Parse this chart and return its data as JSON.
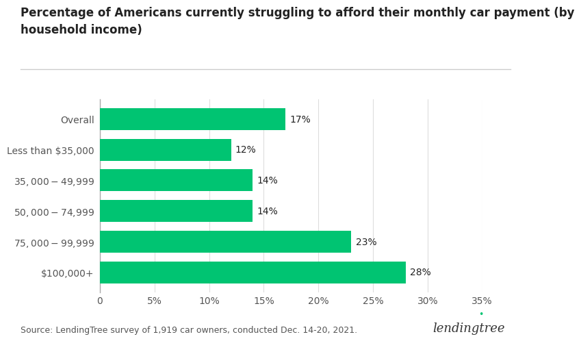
{
  "title_line1": "Percentage of Americans currently struggling to afford their monthly car payment (by",
  "title_line2": "household income)",
  "categories": [
    "Overall",
    "Less than $35,000",
    "$35,000-$49,999",
    "$50,000-$74,999",
    "$75,000-$99,999",
    "$100,000+"
  ],
  "values": [
    17,
    12,
    14,
    14,
    23,
    28
  ],
  "bar_color": "#00C472",
  "label_color": "#222222",
  "background_color": "#ffffff",
  "xlim": [
    0,
    35
  ],
  "xticks": [
    0,
    5,
    10,
    15,
    20,
    25,
    30,
    35
  ],
  "xtick_labels": [
    "0",
    "5%",
    "10%",
    "15%",
    "20%",
    "25%",
    "30%",
    "35%"
  ],
  "title_fontsize": 12,
  "tick_fontsize": 10,
  "label_fontsize": 10,
  "ytick_fontsize": 10,
  "source_text": "Source: LendingTree survey of 1,919 car owners, conducted Dec. 14-20, 2021.",
  "source_fontsize": 9,
  "lendingtree_text": "lendingtree",
  "grid_color": "#dddddd",
  "spine_color": "#aaaaaa"
}
